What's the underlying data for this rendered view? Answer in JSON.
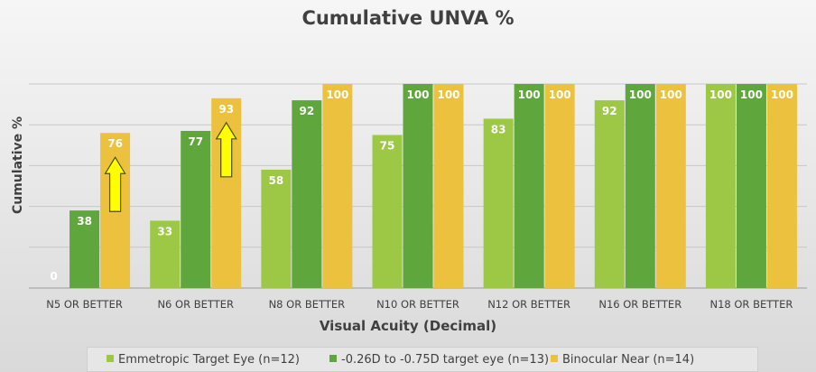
{
  "chart_data": {
    "type": "bar",
    "title": "Cumulative UNVA %",
    "xlabel": "Visual Acuity (Decimal)",
    "ylabel": "Cumulative %",
    "ylim": [
      0,
      100
    ],
    "grid": true,
    "legend_position": "bottom",
    "categories": [
      "N5 OR BETTER",
      "N6 OR BETTER",
      "N8 OR BETTER",
      "N10 OR BETTER",
      "N12 OR BETTER",
      "N16 OR BETTER",
      "N18 OR BETTER"
    ],
    "series": [
      {
        "name": "Emmetropic Target Eye (n=12)",
        "values": [
          0,
          33,
          58,
          75,
          83,
          92,
          100
        ],
        "labels": [
          "0",
          "33",
          "58",
          "75",
          "83",
          "92",
          "100"
        ],
        "color": "#9dc846"
      },
      {
        "name": "-0.26D to -0.75D target eye (n=13)",
        "values": [
          38,
          77,
          92,
          100,
          100,
          100,
          100
        ],
        "labels": [
          "38",
          "77",
          "92",
          "100",
          "100",
          "100",
          "100"
        ],
        "color": "#5fa63c"
      },
      {
        "name": "Binocular Near (n=14)",
        "values": [
          76,
          93,
          100,
          100,
          100,
          100,
          100
        ],
        "labels": [
          "76",
          "93",
          "100",
          "100",
          "100",
          "100",
          "100"
        ],
        "color": "#ecc13e"
      }
    ],
    "annotations": [
      {
        "type": "up-arrow",
        "category_index": 0,
        "series_index": 2,
        "color": "#ffff00"
      },
      {
        "type": "up-arrow",
        "category_index": 1,
        "series_index": 2,
        "color": "#ffff00"
      }
    ]
  }
}
